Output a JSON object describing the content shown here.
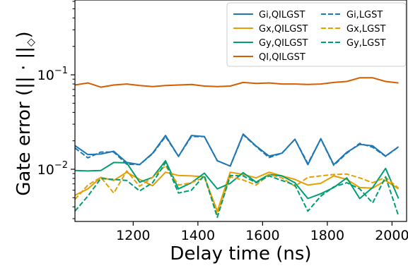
{
  "chart_data": {
    "type": "line",
    "xlabel": "Delay time (ns)",
    "ylabel": "Gate error (|| · ||",
    "ylabel_symbol": "◇",
    "ylabel_close": ")",
    "yscale": "log",
    "xlim": [
      1020,
      2045
    ],
    "ylim": [
      0.0028,
      0.62
    ],
    "xticks": [
      1200,
      1400,
      1600,
      1800,
      2000
    ],
    "xtick_labels": [
      "1200",
      "1400",
      "1600",
      "1800",
      "2000"
    ],
    "yticks": [
      0.01,
      0.1
    ],
    "ytick_labels": [
      {
        "base": "10",
        "exp": "−2"
      },
      {
        "base": "10",
        "exp": "−1"
      }
    ],
    "legend_position": "top-right",
    "x": [
      1020,
      1060,
      1100,
      1140,
      1180,
      1220,
      1260,
      1300,
      1340,
      1380,
      1420,
      1460,
      1500,
      1540,
      1580,
      1620,
      1660,
      1700,
      1740,
      1780,
      1820,
      1860,
      1900,
      1940,
      1980,
      2020
    ],
    "series": [
      {
        "name": "Gi,QILGST",
        "color": "#1f77b4",
        "dash": "solid",
        "values": [
          0.0178,
          0.0143,
          0.0145,
          0.0155,
          0.0118,
          0.0112,
          0.0148,
          0.0228,
          0.0137,
          0.0228,
          0.0222,
          0.0123,
          0.0108,
          0.0236,
          0.0176,
          0.0138,
          0.0148,
          0.0208,
          0.0112,
          0.0211,
          0.0112,
          0.0151,
          0.0183,
          0.0177,
          0.0138,
          0.0173
        ]
      },
      {
        "name": "Gx,QILGST",
        "color": "#e69f00",
        "dash": "solid",
        "values": [
          0.0053,
          0.0062,
          0.0082,
          0.0076,
          0.0093,
          0.0078,
          0.0067,
          0.0093,
          0.0086,
          0.0085,
          0.0083,
          0.0036,
          0.0093,
          0.0088,
          0.0081,
          0.0093,
          0.0085,
          0.0078,
          0.0068,
          0.0071,
          0.0085,
          0.0078,
          0.0064,
          0.0063,
          0.0076,
          0.0062
        ]
      },
      {
        "name": "Gy,QILGST",
        "color": "#009e73",
        "dash": "solid",
        "values": [
          0.0097,
          0.0096,
          0.0097,
          0.0118,
          0.0117,
          0.0073,
          0.0082,
          0.0123,
          0.0062,
          0.0072,
          0.0091,
          0.0062,
          0.0071,
          0.0092,
          0.0073,
          0.0088,
          0.0085,
          0.0072,
          0.0049,
          0.0055,
          0.0064,
          0.0081,
          0.0049,
          0.0064,
          0.0102,
          0.0049
        ]
      },
      {
        "name": "QI,QILGST",
        "color": "#d55e00",
        "dash": "solid",
        "values": [
          0.078,
          0.082,
          0.074,
          0.078,
          0.08,
          0.077,
          0.075,
          0.077,
          0.078,
          0.079,
          0.076,
          0.075,
          0.076,
          0.083,
          0.081,
          0.082,
          0.08,
          0.08,
          0.079,
          0.08,
          0.083,
          0.085,
          0.093,
          0.093,
          0.085,
          0.082
        ]
      },
      {
        "name": "Gi,LGST",
        "color": "#1f77b4",
        "dash": "dashed",
        "values": [
          0.0168,
          0.0132,
          0.0152,
          0.0152,
          0.0113,
          0.0112,
          0.0146,
          0.0222,
          0.0137,
          0.0222,
          0.0222,
          0.0123,
          0.0108,
          0.0232,
          0.0174,
          0.0133,
          0.0148,
          0.0208,
          0.0115,
          0.0209,
          0.011,
          0.0148,
          0.0188,
          0.0171,
          0.0137,
          0.0172
        ]
      },
      {
        "name": "Gx,LGST",
        "color": "#e69f00",
        "dash": "dashed",
        "values": [
          0.0048,
          0.0068,
          0.0082,
          0.0056,
          0.0096,
          0.0066,
          0.0082,
          0.0109,
          0.0068,
          0.0072,
          0.0082,
          0.0033,
          0.0083,
          0.0077,
          0.0068,
          0.0088,
          0.0081,
          0.0066,
          0.0082,
          0.0085,
          0.0088,
          0.0089,
          0.0081,
          0.0072,
          0.0082,
          0.0063
        ]
      },
      {
        "name": "Gy,LGST",
        "color": "#009e73",
        "dash": "dashed",
        "values": [
          0.0036,
          0.0052,
          0.008,
          0.0078,
          0.0076,
          0.0059,
          0.0072,
          0.0118,
          0.0056,
          0.006,
          0.0086,
          0.0031,
          0.0086,
          0.0085,
          0.0072,
          0.0085,
          0.0076,
          0.0068,
          0.0036,
          0.0052,
          0.0065,
          0.0072,
          0.0062,
          0.0044,
          0.0083,
          0.0032
        ]
      }
    ]
  }
}
